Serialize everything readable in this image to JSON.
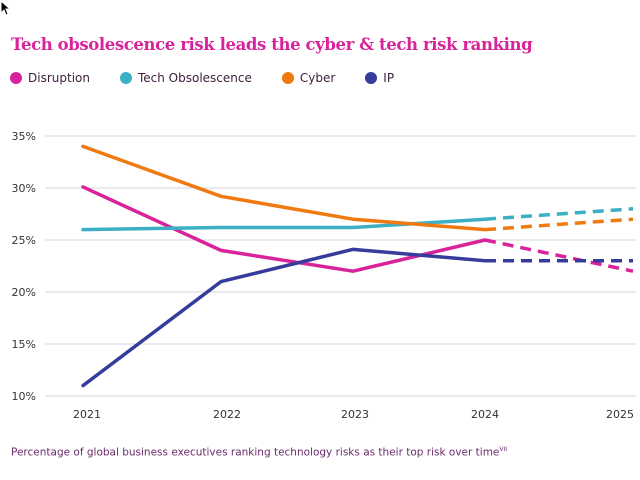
{
  "chart_data": {
    "type": "line",
    "title": "Tech obsolescence risk leads the cyber & tech risk ranking",
    "caption": "Percentage of global business executives ranking technology risks as their top risk over time",
    "caption_superscript": "VII",
    "x": [
      "2021",
      "2022",
      "2023",
      "2024",
      "2025"
    ],
    "yticks": [
      "10%",
      "15%",
      "20%",
      "25%",
      "30%",
      "35%"
    ],
    "ylim": [
      10,
      35
    ],
    "grid": "horizontal",
    "legend_position": "top-left",
    "dashed_from": "2024",
    "series": [
      {
        "name": "Disruption",
        "color": "#d9239a",
        "values": [
          30.1,
          24,
          22,
          25,
          22
        ]
      },
      {
        "name": "Tech Obsolescence",
        "color": "#3bafc6",
        "values": [
          26,
          26.2,
          26.2,
          27,
          28
        ]
      },
      {
        "name": "Cyber",
        "color": "#f07a10",
        "values": [
          34,
          29.2,
          27,
          26,
          27
        ]
      },
      {
        "name": "IP",
        "color": "#373c9c",
        "values": [
          11,
          21,
          24.1,
          23,
          23
        ]
      }
    ]
  }
}
